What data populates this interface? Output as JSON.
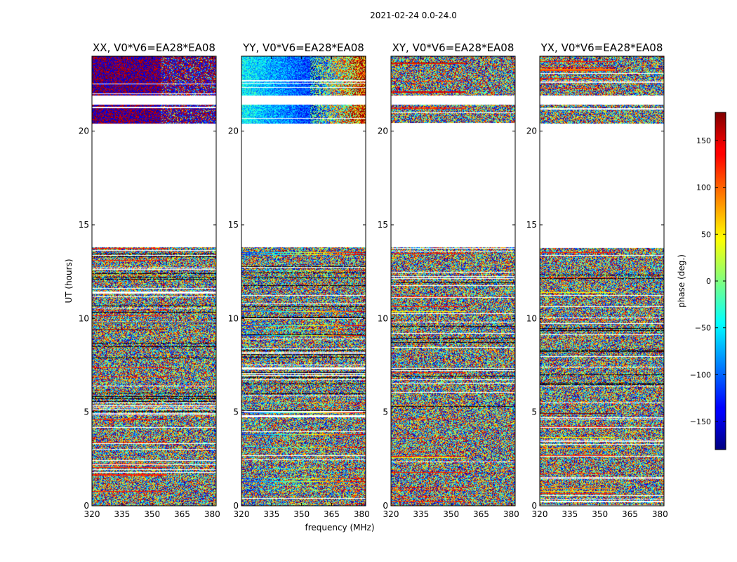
{
  "figure": {
    "title": "2021-02-24 0.0-24.0"
  },
  "chart_data": {
    "type": "heatmap",
    "suptitle": "2021-02-24 0.0-24.0",
    "shared_xlabel": "frequency (MHz)",
    "shared_ylabel": "UT (hours)",
    "xlim": [
      320,
      382
    ],
    "ylim": [
      0,
      24
    ],
    "xticks": [
      320,
      335,
      350,
      365,
      380
    ],
    "yticks": [
      0,
      5,
      10,
      15,
      20
    ],
    "panels": [
      {
        "title": "XX, V0*V6=EA28*EA08",
        "pol": "XX",
        "style": "coherent_red_blue",
        "gradient": false
      },
      {
        "title": "YY, V0*V6=EA28*EA08",
        "pol": "YY",
        "style": "coherent_gradient",
        "gradient": true
      },
      {
        "title": "XY, V0*V6=EA28*EA08",
        "pol": "XY",
        "style": "noise",
        "gradient": false
      },
      {
        "title": "YX, V0*V6=EA28*EA08",
        "pol": "YX",
        "style": "noise",
        "gradient": false
      }
    ],
    "data_segments_hours": [
      [
        0,
        13.8
      ],
      [
        20.4,
        24.0
      ]
    ],
    "blank_gaps_hours": [
      [
        13.8,
        20.4
      ],
      [
        21.4,
        21.9
      ]
    ],
    "colorbar": {
      "label": "phase (deg.)",
      "range": [
        -180,
        180
      ],
      "ticks": [
        -150,
        -100,
        -50,
        0,
        50,
        100,
        150
      ],
      "tick_labels": [
        "−150",
        "−100",
        "−50",
        "0",
        "50",
        "100",
        "150"
      ],
      "colormap": "jet"
    }
  }
}
